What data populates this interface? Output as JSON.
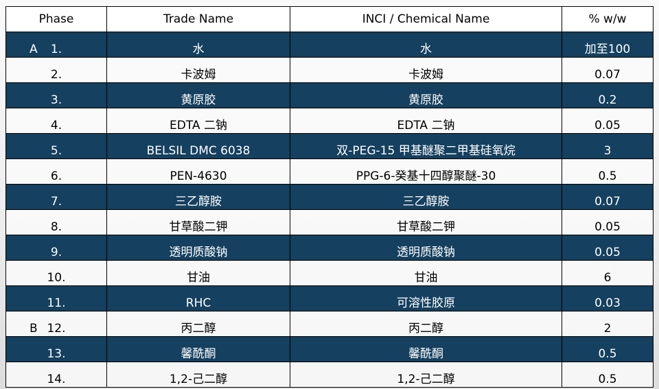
{
  "headers": [
    "Phase",
    "Trade Name",
    "INCI / Chemical Name",
    "% w/w"
  ],
  "colors": {
    "dark_row": "#15405f",
    "light_row": "#fafafa"
  },
  "rows": [
    {
      "group": "A",
      "no": "1.",
      "trade": "水",
      "inci": "水",
      "pct": "加至100"
    },
    {
      "group": "",
      "no": "2.",
      "trade": "卡波姆",
      "inci": "卡波姆",
      "pct": "0.07"
    },
    {
      "group": "",
      "no": "3.",
      "trade": "黄原胶",
      "inci": "黄原胶",
      "pct": "0.2"
    },
    {
      "group": "",
      "no": "4.",
      "trade": "EDTA 二钠",
      "inci": "EDTA 二钠",
      "pct": "0.05"
    },
    {
      "group": "",
      "no": "5.",
      "trade": "BELSIL DMC 6038",
      "inci": "双-PEG-15 甲基醚聚二甲基硅氧烷",
      "pct": "3"
    },
    {
      "group": "",
      "no": "6.",
      "trade": "PEN-4630",
      "inci": "PPG-6-癸基十四醇聚醚-30",
      "pct": "0.5"
    },
    {
      "group": "",
      "no": "7.",
      "trade": "三乙醇胺",
      "inci": "三乙醇胺",
      "pct": "0.07"
    },
    {
      "group": "",
      "no": "8.",
      "trade": "甘草酸二钾",
      "inci": "甘草酸二钾",
      "pct": "0.05"
    },
    {
      "group": "",
      "no": "9.",
      "trade": "透明质酸钠",
      "inci": "透明质酸钠",
      "pct": "0.05"
    },
    {
      "group": "",
      "no": "10.",
      "trade": "甘油",
      "inci": "甘油",
      "pct": "6"
    },
    {
      "group": "",
      "no": "11.",
      "trade": "RHC",
      "inci": "可溶性胶原",
      "pct": "0.03"
    },
    {
      "group": "B",
      "no": "12.",
      "trade": "丙二醇",
      "inci": "丙二醇",
      "pct": "2"
    },
    {
      "group": "",
      "no": "13.",
      "trade": "馨酰酮",
      "inci": "馨酰酮",
      "pct": "0.5"
    },
    {
      "group": "",
      "no": "14.",
      "trade": "1,2-己二醇",
      "inci": "1,2-己二醇",
      "pct": "0.5"
    }
  ]
}
